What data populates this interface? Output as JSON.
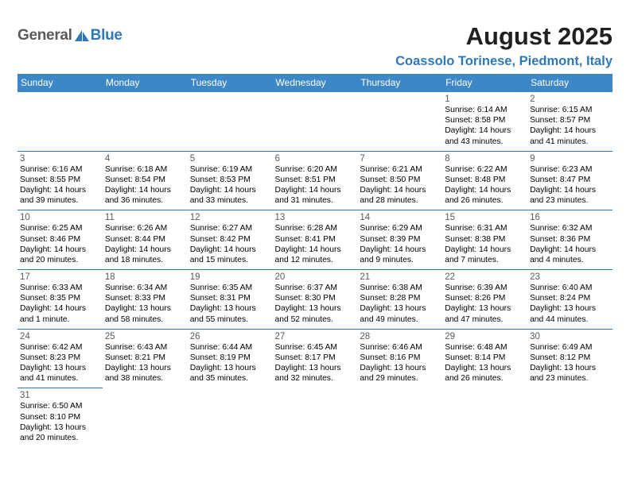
{
  "logo": {
    "part1": "General",
    "part2": "Blue"
  },
  "title": "August 2025",
  "subtitle": "Coassolo Torinese, Piedmont, Italy",
  "colors": {
    "header_bg": "#3d87c7",
    "accent": "#2f78b8",
    "logo_gray": "#5a5a5a",
    "title_color": "#212121",
    "daynum_color": "#595959",
    "border_color": "#2f78b8",
    "bg": "#ffffff"
  },
  "typography": {
    "main_title_size": 31,
    "subtitle_size": 16.5,
    "weekday_size": 12,
    "daynum_size": 11.5,
    "body_size": 10.3
  },
  "weekdays": [
    "Sunday",
    "Monday",
    "Tuesday",
    "Wednesday",
    "Thursday",
    "Friday",
    "Saturday"
  ],
  "weeks": [
    [
      null,
      null,
      null,
      null,
      null,
      {
        "n": "1",
        "sr": "Sunrise: 6:14 AM",
        "ss": "Sunset: 8:58 PM",
        "dl": "Daylight: 14 hours and 43 minutes."
      },
      {
        "n": "2",
        "sr": "Sunrise: 6:15 AM",
        "ss": "Sunset: 8:57 PM",
        "dl": "Daylight: 14 hours and 41 minutes."
      }
    ],
    [
      {
        "n": "3",
        "sr": "Sunrise: 6:16 AM",
        "ss": "Sunset: 8:55 PM",
        "dl": "Daylight: 14 hours and 39 minutes."
      },
      {
        "n": "4",
        "sr": "Sunrise: 6:18 AM",
        "ss": "Sunset: 8:54 PM",
        "dl": "Daylight: 14 hours and 36 minutes."
      },
      {
        "n": "5",
        "sr": "Sunrise: 6:19 AM",
        "ss": "Sunset: 8:53 PM",
        "dl": "Daylight: 14 hours and 33 minutes."
      },
      {
        "n": "6",
        "sr": "Sunrise: 6:20 AM",
        "ss": "Sunset: 8:51 PM",
        "dl": "Daylight: 14 hours and 31 minutes."
      },
      {
        "n": "7",
        "sr": "Sunrise: 6:21 AM",
        "ss": "Sunset: 8:50 PM",
        "dl": "Daylight: 14 hours and 28 minutes."
      },
      {
        "n": "8",
        "sr": "Sunrise: 6:22 AM",
        "ss": "Sunset: 8:48 PM",
        "dl": "Daylight: 14 hours and 26 minutes."
      },
      {
        "n": "9",
        "sr": "Sunrise: 6:23 AM",
        "ss": "Sunset: 8:47 PM",
        "dl": "Daylight: 14 hours and 23 minutes."
      }
    ],
    [
      {
        "n": "10",
        "sr": "Sunrise: 6:25 AM",
        "ss": "Sunset: 8:46 PM",
        "dl": "Daylight: 14 hours and 20 minutes."
      },
      {
        "n": "11",
        "sr": "Sunrise: 6:26 AM",
        "ss": "Sunset: 8:44 PM",
        "dl": "Daylight: 14 hours and 18 minutes."
      },
      {
        "n": "12",
        "sr": "Sunrise: 6:27 AM",
        "ss": "Sunset: 8:42 PM",
        "dl": "Daylight: 14 hours and 15 minutes."
      },
      {
        "n": "13",
        "sr": "Sunrise: 6:28 AM",
        "ss": "Sunset: 8:41 PM",
        "dl": "Daylight: 14 hours and 12 minutes."
      },
      {
        "n": "14",
        "sr": "Sunrise: 6:29 AM",
        "ss": "Sunset: 8:39 PM",
        "dl": "Daylight: 14 hours and 9 minutes."
      },
      {
        "n": "15",
        "sr": "Sunrise: 6:31 AM",
        "ss": "Sunset: 8:38 PM",
        "dl": "Daylight: 14 hours and 7 minutes."
      },
      {
        "n": "16",
        "sr": "Sunrise: 6:32 AM",
        "ss": "Sunset: 8:36 PM",
        "dl": "Daylight: 14 hours and 4 minutes."
      }
    ],
    [
      {
        "n": "17",
        "sr": "Sunrise: 6:33 AM",
        "ss": "Sunset: 8:35 PM",
        "dl": "Daylight: 14 hours and 1 minute."
      },
      {
        "n": "18",
        "sr": "Sunrise: 6:34 AM",
        "ss": "Sunset: 8:33 PM",
        "dl": "Daylight: 13 hours and 58 minutes."
      },
      {
        "n": "19",
        "sr": "Sunrise: 6:35 AM",
        "ss": "Sunset: 8:31 PM",
        "dl": "Daylight: 13 hours and 55 minutes."
      },
      {
        "n": "20",
        "sr": "Sunrise: 6:37 AM",
        "ss": "Sunset: 8:30 PM",
        "dl": "Daylight: 13 hours and 52 minutes."
      },
      {
        "n": "21",
        "sr": "Sunrise: 6:38 AM",
        "ss": "Sunset: 8:28 PM",
        "dl": "Daylight: 13 hours and 49 minutes."
      },
      {
        "n": "22",
        "sr": "Sunrise: 6:39 AM",
        "ss": "Sunset: 8:26 PM",
        "dl": "Daylight: 13 hours and 47 minutes."
      },
      {
        "n": "23",
        "sr": "Sunrise: 6:40 AM",
        "ss": "Sunset: 8:24 PM",
        "dl": "Daylight: 13 hours and 44 minutes."
      }
    ],
    [
      {
        "n": "24",
        "sr": "Sunrise: 6:42 AM",
        "ss": "Sunset: 8:23 PM",
        "dl": "Daylight: 13 hours and 41 minutes."
      },
      {
        "n": "25",
        "sr": "Sunrise: 6:43 AM",
        "ss": "Sunset: 8:21 PM",
        "dl": "Daylight: 13 hours and 38 minutes."
      },
      {
        "n": "26",
        "sr": "Sunrise: 6:44 AM",
        "ss": "Sunset: 8:19 PM",
        "dl": "Daylight: 13 hours and 35 minutes."
      },
      {
        "n": "27",
        "sr": "Sunrise: 6:45 AM",
        "ss": "Sunset: 8:17 PM",
        "dl": "Daylight: 13 hours and 32 minutes."
      },
      {
        "n": "28",
        "sr": "Sunrise: 6:46 AM",
        "ss": "Sunset: 8:16 PM",
        "dl": "Daylight: 13 hours and 29 minutes."
      },
      {
        "n": "29",
        "sr": "Sunrise: 6:48 AM",
        "ss": "Sunset: 8:14 PM",
        "dl": "Daylight: 13 hours and 26 minutes."
      },
      {
        "n": "30",
        "sr": "Sunrise: 6:49 AM",
        "ss": "Sunset: 8:12 PM",
        "dl": "Daylight: 13 hours and 23 minutes."
      }
    ],
    [
      {
        "n": "31",
        "sr": "Sunrise: 6:50 AM",
        "ss": "Sunset: 8:10 PM",
        "dl": "Daylight: 13 hours and 20 minutes."
      },
      null,
      null,
      null,
      null,
      null,
      null
    ]
  ]
}
